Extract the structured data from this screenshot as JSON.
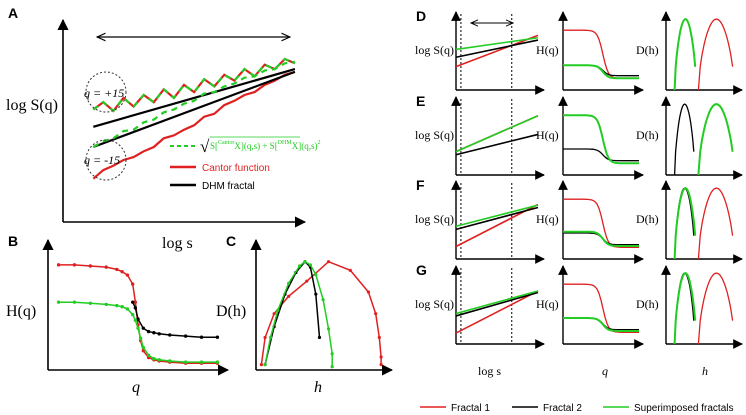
{
  "chart_data": [
    {
      "id": "A",
      "type": "line",
      "panel_label": "A",
      "xlabel": "log s",
      "ylabel": "log S(q)",
      "annotations": [
        "q = +15",
        "q = -15"
      ],
      "legend": [
        "Cantor function",
        "DHM fractal"
      ],
      "legend_formula": {
        "root": "√",
        "s1": "S[",
        "sup1": "Cantor",
        "sub1": "X",
        "mid": "](q,s)",
        "plus": " + S[",
        "sup2": "DHM",
        "end": "](q,s)",
        "pow": "2"
      },
      "series": [
        {
          "name": "Cantor function q=+15",
          "color": "#e02020",
          "style": "solid",
          "x": [
            0,
            1,
            2,
            3,
            4,
            5,
            6,
            7,
            8,
            9,
            10,
            11,
            12,
            13,
            14,
            15,
            16,
            17,
            18,
            19,
            20
          ],
          "y": [
            4.8,
            5.3,
            4.7,
            5.6,
            5.0,
            5.8,
            5.3,
            6.2,
            5.6,
            6.5,
            6.0,
            6.9,
            6.4,
            7.2,
            6.8,
            7.6,
            7.1,
            7.9,
            7.6,
            8.3,
            8.0
          ]
        },
        {
          "name": "DHM fractal q=+15",
          "color": "#000000",
          "style": "solid",
          "x": [
            0,
            20
          ],
          "y": [
            3.6,
            7.6
          ]
        },
        {
          "name": "Cantor function q=-15",
          "color": "#e02020",
          "style": "solid",
          "x": [
            0,
            1,
            2,
            3,
            4,
            5,
            6,
            7,
            8,
            9,
            10,
            11,
            12,
            13,
            14,
            15,
            16,
            17,
            18,
            19,
            20
          ],
          "y": [
            0.0,
            0.6,
            0.9,
            1.3,
            1.5,
            1.9,
            2.2,
            2.8,
            3.0,
            3.4,
            3.7,
            4.3,
            4.5,
            5.1,
            5.4,
            5.8,
            6.0,
            6.5,
            6.8,
            7.2,
            7.4
          ]
        },
        {
          "name": "DHM fractal q=-15",
          "color": "#000000",
          "style": "solid",
          "x": [
            0,
            20
          ],
          "y": [
            2.2,
            7.4
          ]
        },
        {
          "name": "Superimposed q=+15",
          "color": "#22cc22",
          "style": "dashed",
          "x": [
            0,
            1,
            2,
            3,
            4,
            5,
            6,
            7,
            8,
            9,
            10,
            11,
            12,
            13,
            14,
            15,
            16,
            17,
            18,
            19,
            20
          ],
          "y": [
            4.8,
            5.3,
            4.7,
            5.6,
            5.0,
            5.8,
            5.3,
            6.2,
            5.6,
            6.5,
            6.0,
            6.9,
            6.4,
            7.2,
            6.8,
            7.6,
            7.1,
            7.9,
            7.6,
            8.3,
            8.0
          ]
        },
        {
          "name": "Superimposed q=-15",
          "color": "#22cc22",
          "style": "dashed",
          "x": [
            0,
            1,
            2,
            3,
            4,
            5,
            6,
            7,
            8,
            9,
            10,
            11,
            12,
            13,
            14,
            15,
            16,
            17,
            18,
            19,
            20
          ],
          "y": [
            2.2,
            2.6,
            2.8,
            3.3,
            3.4,
            3.9,
            4.1,
            4.6,
            4.8,
            5.2,
            5.4,
            5.9,
            6.0,
            6.4,
            6.6,
            7.0,
            7.1,
            7.5,
            7.6,
            8.0,
            8.1
          ]
        }
      ],
      "xlim": [
        -3,
        21
      ],
      "ylim": [
        -3,
        11
      ]
    },
    {
      "id": "B",
      "type": "line",
      "panel_label": "B",
      "xlabel": "q",
      "ylabel": "H(q)",
      "series": [
        {
          "name": "Cantor function",
          "color": "#e02020",
          "x": [
            -15,
            -12,
            -9,
            -6,
            -4,
            -3,
            -2,
            -1,
            -0.5,
            0,
            0.5,
            1,
            2,
            3,
            4,
            6,
            9,
            12,
            15
          ],
          "y": [
            0.93,
            0.93,
            0.92,
            0.91,
            0.89,
            0.87,
            0.84,
            0.76,
            0.6,
            0.4,
            0.26,
            0.17,
            0.11,
            0.09,
            0.08,
            0.07,
            0.06,
            0.06,
            0.06
          ]
        },
        {
          "name": "DHM fractal",
          "color": "#000000",
          "x": [
            -1,
            -0.5,
            0,
            1,
            2,
            3,
            4,
            6,
            9,
            12,
            15
          ],
          "y": [
            0.6,
            0.55,
            0.45,
            0.37,
            0.34,
            0.33,
            0.32,
            0.31,
            0.3,
            0.29,
            0.29
          ]
        },
        {
          "name": "Superimposed fractals",
          "color": "#22cc22",
          "x": [
            -15,
            -12,
            -9,
            -6,
            -4,
            -3,
            -2,
            -1,
            -0.5,
            0,
            0.5,
            1,
            2,
            3,
            4,
            6,
            9,
            12,
            15
          ],
          "y": [
            0.6,
            0.6,
            0.59,
            0.58,
            0.57,
            0.56,
            0.54,
            0.49,
            0.44,
            0.37,
            0.28,
            0.2,
            0.13,
            0.1,
            0.09,
            0.08,
            0.07,
            0.07,
            0.07
          ]
        }
      ],
      "xlim": [
        -17,
        17
      ],
      "ylim": [
        0,
        1.15
      ]
    },
    {
      "id": "C",
      "type": "line",
      "panel_label": "C",
      "xlabel": "h",
      "ylabel": "D(h)",
      "series": [
        {
          "name": "Cantor function",
          "color": "#e02020",
          "x": [
            0.03,
            0.05,
            0.1,
            0.18,
            0.28,
            0.4,
            0.52,
            0.62,
            0.66,
            0.68,
            0.69,
            0.69
          ],
          "y": [
            0.05,
            0.3,
            0.52,
            0.68,
            0.82,
            1.0,
            0.92,
            0.72,
            0.52,
            0.3,
            0.12,
            0.05
          ]
        },
        {
          "name": "DHM fractal",
          "color": "#000000",
          "x": [
            0.05,
            0.1,
            0.16,
            0.22,
            0.27,
            0.3,
            0.33,
            0.35
          ],
          "y": [
            0.05,
            0.4,
            0.7,
            0.9,
            1.0,
            0.95,
            0.7,
            0.3
          ]
        },
        {
          "name": "Superimposed fractals",
          "color": "#22cc22",
          "x": [
            0.05,
            0.08,
            0.12,
            0.18,
            0.24,
            0.27,
            0.3,
            0.33,
            0.37,
            0.4,
            0.42,
            0.42
          ],
          "y": [
            0.05,
            0.3,
            0.55,
            0.8,
            0.96,
            1.0,
            0.97,
            0.88,
            0.65,
            0.38,
            0.15,
            0.03
          ]
        }
      ],
      "xlim": [
        0,
        0.75
      ],
      "ylim": [
        0,
        1.2
      ]
    },
    {
      "id": "DG",
      "type": "grid",
      "panel_labels": [
        "D",
        "E",
        "F",
        "G"
      ],
      "column_ylabels": [
        "log S(q)",
        "H(q)",
        "D(h)"
      ],
      "column_xlabels": [
        "log s",
        "q",
        "h"
      ],
      "rows": [
        {
          "label": "D",
          "logS": {
            "red": [
              [
                0,
                3.0
              ],
              [
                10,
                7.0
              ]
            ],
            "black": [
              [
                0,
                4.2
              ],
              [
                10,
                6.4
              ]
            ],
            "green": [
              [
                0,
                5.2
              ],
              [
                10,
                6.7
              ]
            ]
          },
          "H": {
            "red": [
              0.92,
              0.18
            ],
            "black": [
              0.38,
              0.22
            ],
            "green": [
              0.38,
              0.18
            ]
          },
          "D": {
            "red": [
              0.45,
              0.95
            ],
            "black": [
              0.12,
              0.42
            ],
            "green": [
              0.12,
              0.42
            ]
          }
        },
        {
          "label": "E",
          "logS": {
            "red": [
              [
                0,
                3.0
              ],
              [
                10,
                7.6
              ]
            ],
            "black": [
              [
                0,
                2.6
              ],
              [
                10,
                5.2
              ]
            ],
            "green": [
              [
                0,
                3.0
              ],
              [
                10,
                7.6
              ]
            ]
          },
          "H": {
            "red": [
              0.92,
              0.18
            ],
            "black": [
              0.4,
              0.22
            ],
            "green": [
              0.92,
              0.18
            ]
          },
          "D": {
            "red": [
              0.45,
              0.95
            ],
            "black": [
              0.12,
              0.4
            ],
            "green": [
              0.45,
              0.95
            ]
          }
        },
        {
          "label": "F",
          "logS": {
            "red": [
              [
                0,
                1.6
              ],
              [
                10,
                7.0
              ]
            ],
            "black": [
              [
                0,
                3.8
              ],
              [
                10,
                6.6
              ]
            ],
            "green": [
              [
                0,
                4.2
              ],
              [
                10,
                6.9
              ]
            ]
          },
          "H": {
            "red": [
              0.92,
              0.18
            ],
            "black": [
              0.4,
              0.22
            ],
            "green": [
              0.42,
              0.2
            ]
          },
          "D": {
            "red": [
              0.45,
              0.95
            ],
            "black": [
              0.12,
              0.4
            ],
            "green": [
              0.12,
              0.42
            ]
          }
        },
        {
          "label": "G",
          "logS": {
            "red": [
              [
                0,
                1.4
              ],
              [
                10,
                6.8
              ]
            ],
            "black": [
              [
                0,
                3.6
              ],
              [
                10,
                6.6
              ]
            ],
            "green": [
              [
                0,
                3.9
              ],
              [
                10,
                6.8
              ]
            ]
          },
          "H": {
            "red": [
              0.92,
              0.18
            ],
            "black": [
              0.4,
              0.22
            ],
            "green": [
              0.4,
              0.2
            ]
          },
          "D": {
            "red": [
              0.45,
              0.95
            ],
            "black": [
              0.12,
              0.4
            ],
            "green": [
              0.12,
              0.42
            ]
          }
        }
      ],
      "legend": [
        {
          "label": "Fractal 1",
          "color": "#e02020"
        },
        {
          "label": "Fractal 2",
          "color": "#000000"
        },
        {
          "label": "Superimposed fractals",
          "color": "#22cc22"
        }
      ]
    }
  ]
}
